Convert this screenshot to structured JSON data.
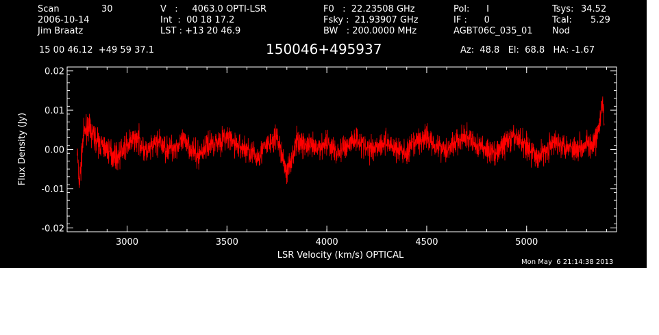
{
  "header": {
    "col1": [
      "Scan",
      "2006-10-14",
      "Jim Braatz"
    ],
    "scan_value": "30",
    "col2": [
      "V   :     4063.0 OPTI-LSR",
      "Int  :  00 18 17.2",
      "LST : +13 20 46.9"
    ],
    "col3": [
      "F0   :  22.23508 GHz",
      "Fsky :  21.93907 GHz",
      "BW   : 200.0000 MHz"
    ],
    "col4": [
      "Pol:      I",
      "IF :      0",
      "AGBT06C_035_01"
    ],
    "col5": [
      "Tsys:",
      "Tcal:",
      "Nod"
    ],
    "col5_values": [
      "34.52",
      "5.29",
      ""
    ],
    "coords": "15 00 46.12  +49 59 37.1",
    "source": "150046+495937",
    "pointing": "Az:  48.8   El:  68.8   HA: -1.67",
    "timestamp": "Mon May  6 21:14:38 2013"
  },
  "colors": {
    "background": "#000000",
    "axes": "#ffffff",
    "trace": "#ff0000"
  },
  "chart_data": {
    "type": "line",
    "xlabel": "LSR Velocity (km/s) OPTICAL",
    "ylabel": "Flux Density (Jy)",
    "xlim": [
      2700,
      5450
    ],
    "ylim": [
      -0.021,
      0.021
    ],
    "xticks": [
      3000,
      3500,
      4000,
      4500,
      5000
    ],
    "xtick_labels": [
      "3000",
      "3500",
      "4000",
      "4500",
      "5000"
    ],
    "yticks": [
      -0.02,
      -0.01,
      0.0,
      0.01,
      0.02
    ],
    "ytick_labels": [
      "-0.02",
      "-0.01",
      "0.00",
      "0.01",
      "0.02"
    ],
    "series": [
      {
        "color": "#ff0000",
        "x": [
          2750,
          2760,
          2770,
          2780,
          2800,
          2850,
          2900,
          2950,
          3000,
          3050,
          3100,
          3150,
          3200,
          3250,
          3300,
          3350,
          3400,
          3450,
          3500,
          3550,
          3600,
          3650,
          3700,
          3750,
          3800,
          3850,
          3900,
          3950,
          4000,
          4050,
          4100,
          4150,
          4200,
          4250,
          4300,
          4350,
          4400,
          4450,
          4500,
          4550,
          4600,
          4650,
          4700,
          4750,
          4800,
          4850,
          4900,
          4950,
          5000,
          5050,
          5100,
          5150,
          5200,
          5250,
          5300,
          5330,
          5350,
          5370,
          5380,
          5390
        ],
        "y": [
          0.0,
          -0.009,
          -0.004,
          0.003,
          0.006,
          0.002,
          0.0,
          -0.002,
          0.001,
          0.003,
          -0.001,
          0.002,
          0.0,
          0.001,
          0.002,
          -0.002,
          0.001,
          0.002,
          0.003,
          0.001,
          0.0,
          -0.002,
          0.001,
          0.003,
          -0.006,
          0.002,
          0.001,
          0.0,
          0.002,
          -0.001,
          0.001,
          0.003,
          0.0,
          0.001,
          0.002,
          0.0,
          -0.001,
          0.002,
          0.003,
          0.001,
          0.0,
          0.002,
          0.003,
          0.001,
          0.0,
          -0.001,
          0.002,
          0.003,
          0.001,
          -0.002,
          0.0,
          0.002,
          0.001,
          0.0,
          0.002,
          0.0,
          0.003,
          0.008,
          0.012,
          0.006
        ]
      }
    ]
  }
}
